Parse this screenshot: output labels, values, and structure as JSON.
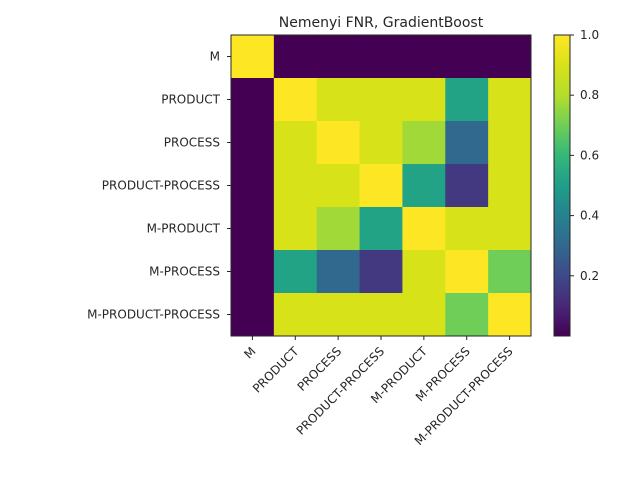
{
  "chart_data": {
    "type": "heatmap",
    "title": "Nemenyi FNR, GradientBoost",
    "xlabel": "",
    "ylabel": "",
    "categories": [
      "M",
      "PRODUCT",
      "PROCESS",
      "PRODUCT-PROCESS",
      "M-PRODUCT",
      "M-PROCESS",
      "M-PRODUCT-PROCESS"
    ],
    "values": [
      [
        1.0,
        0.0,
        0.0,
        0.0,
        0.0,
        0.0,
        0.0
      ],
      [
        0.0,
        1.0,
        0.9,
        0.9,
        0.9,
        0.52,
        0.9
      ],
      [
        0.0,
        0.9,
        1.0,
        0.9,
        0.77,
        0.3,
        0.9
      ],
      [
        0.0,
        0.9,
        0.9,
        1.0,
        0.52,
        0.15,
        0.9
      ],
      [
        0.0,
        0.9,
        0.77,
        0.52,
        1.0,
        0.9,
        0.9
      ],
      [
        0.0,
        0.52,
        0.3,
        0.15,
        0.9,
        1.0,
        0.7
      ],
      [
        0.0,
        0.9,
        0.9,
        0.9,
        0.9,
        0.7,
        1.0
      ]
    ],
    "colorbar": {
      "colormap": "viridis",
      "range": [
        0.0,
        1.0
      ],
      "ticks": [
        "0.2",
        "0.4",
        "0.6",
        "0.8",
        "1.0"
      ],
      "tick_values": [
        0.2,
        0.4,
        0.6,
        0.8,
        1.0
      ]
    },
    "grid": false
  }
}
